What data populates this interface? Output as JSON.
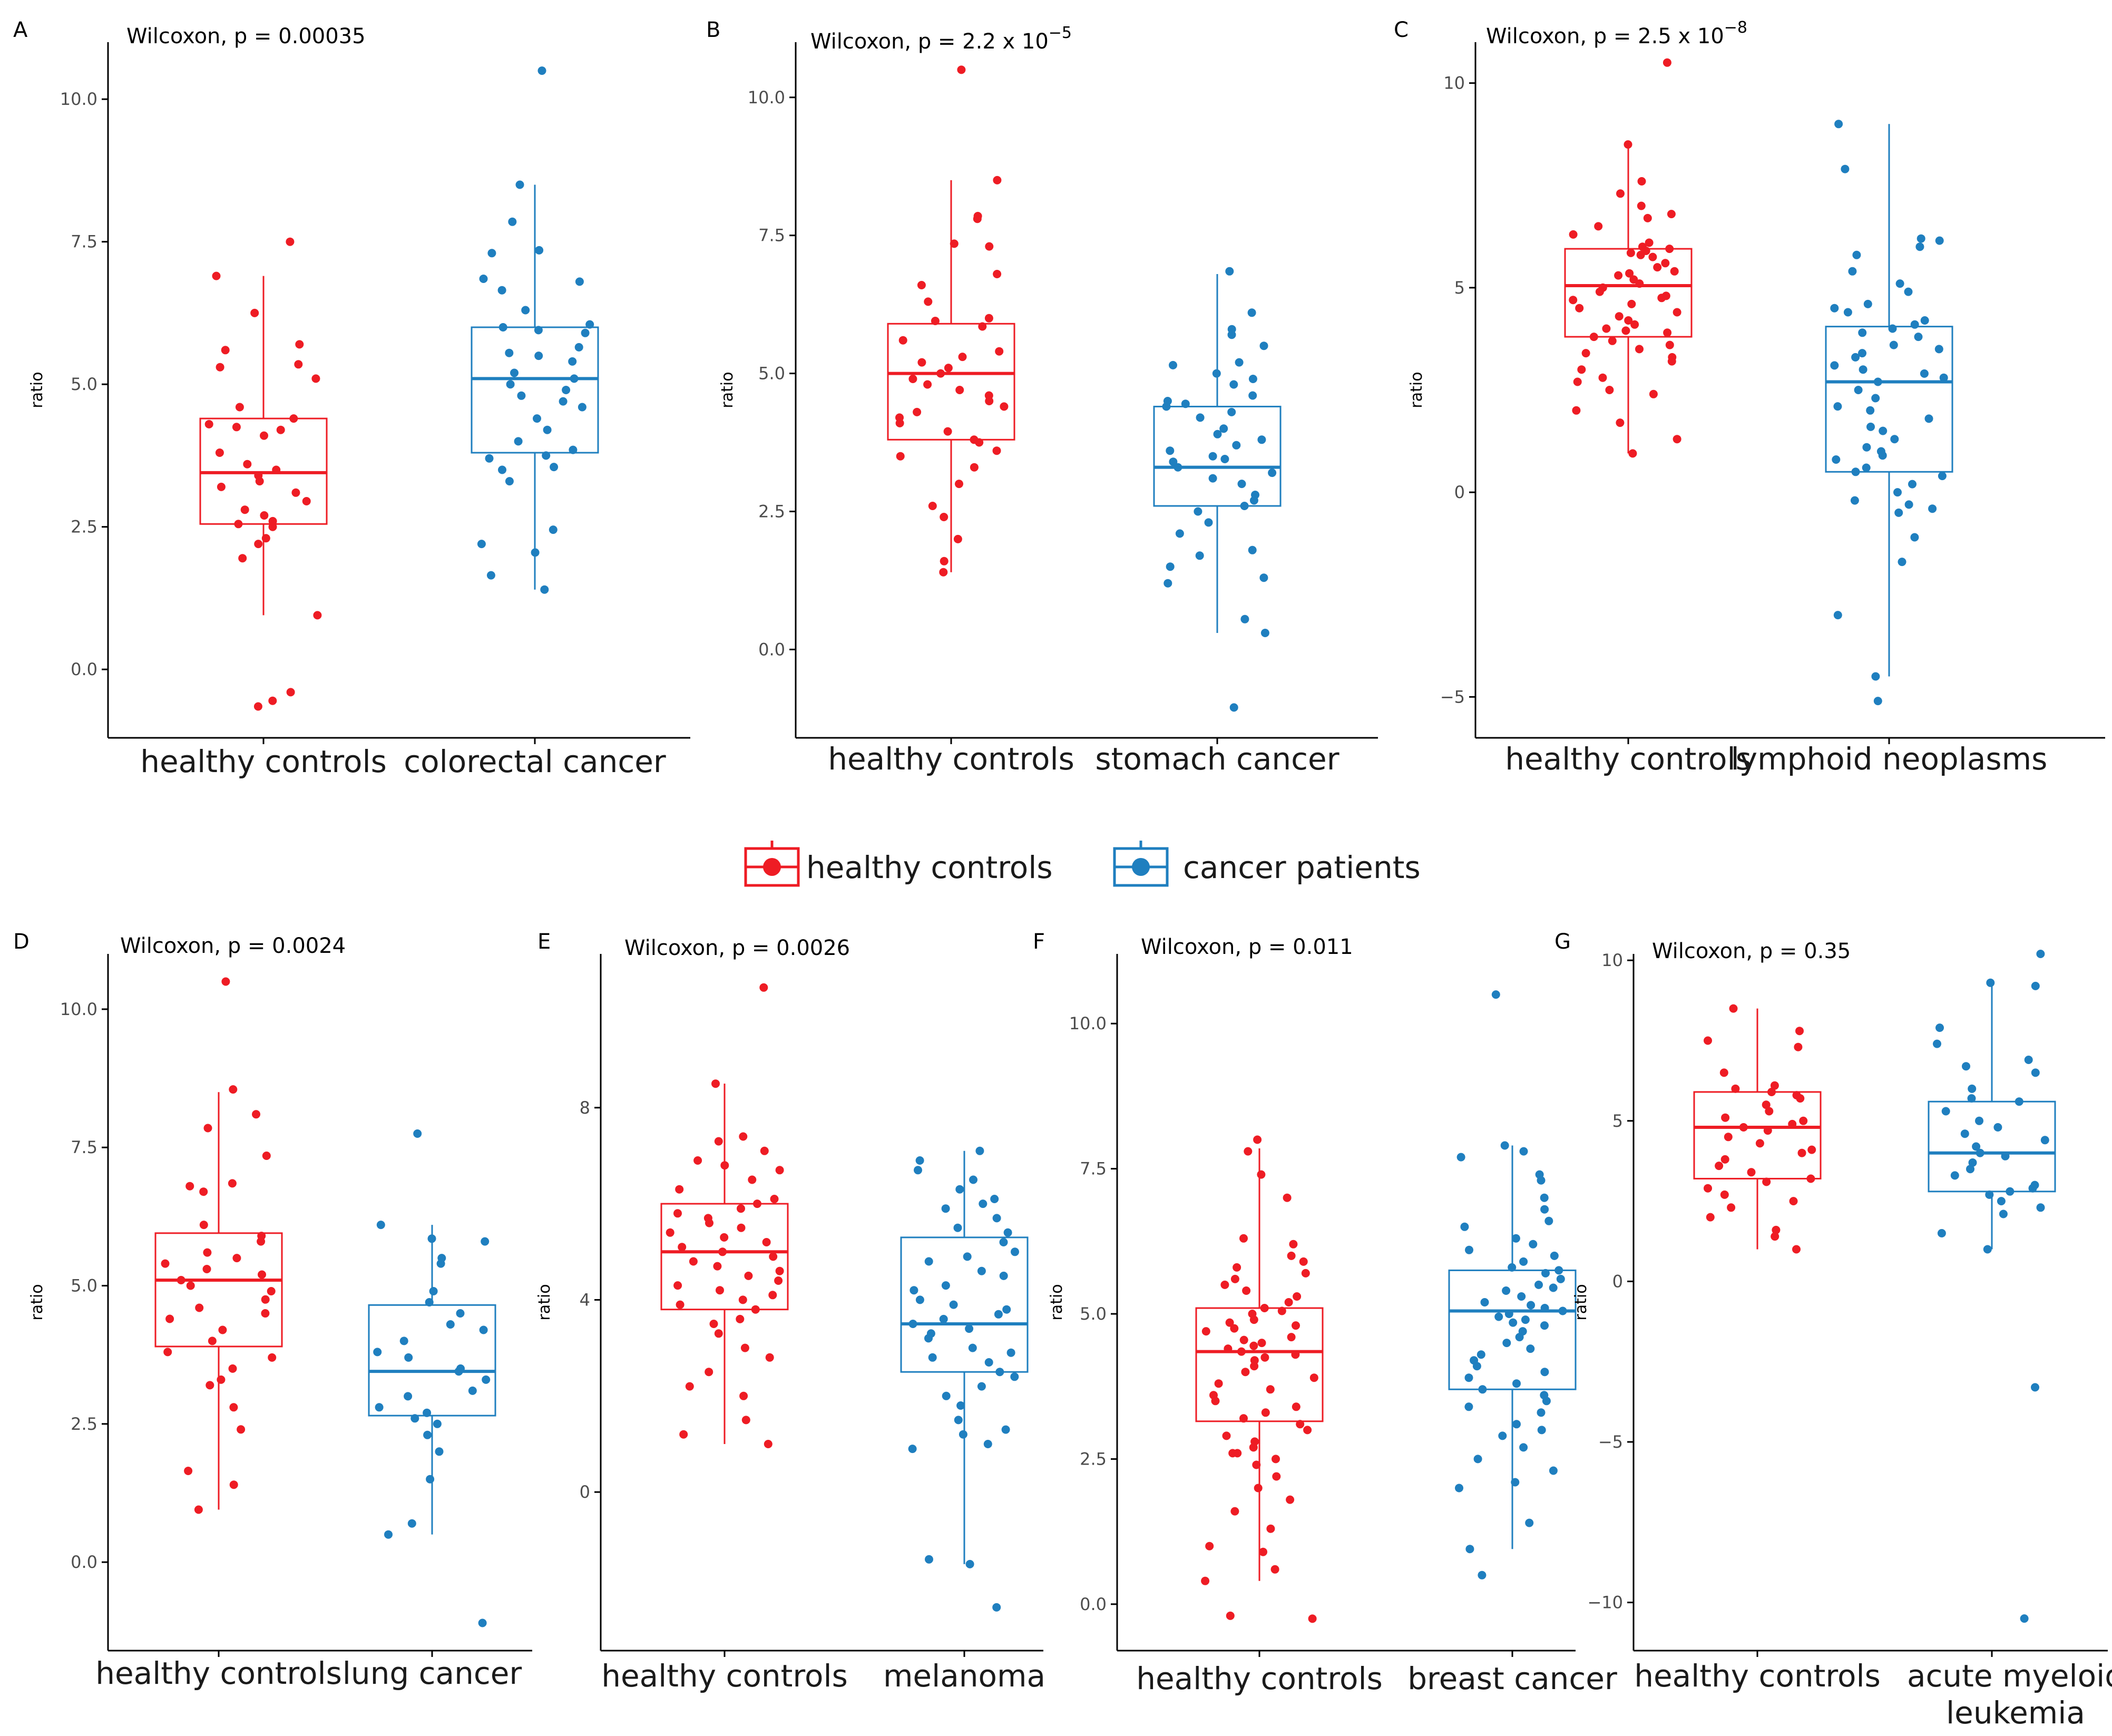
{
  "colors": {
    "healthy": "#ee1c24",
    "cancer": "#1f7fbf"
  },
  "legend": {
    "items": [
      {
        "label": "healthy controls",
        "color": "#ee1c24"
      },
      {
        "label": "cancer patients",
        "color": "#1f7fbf"
      }
    ]
  },
  "chart_data": [
    {
      "panel": "A",
      "type": "box",
      "title_prefix": "Wilcoxon, p = ",
      "p_value": "0.00035",
      "ylabel": "ratio",
      "ylim": [
        -1.2,
        11.0
      ],
      "yticks": [
        0.0,
        2.5,
        5.0,
        7.5,
        10.0
      ],
      "ytick_labels": [
        "0.0",
        "2.5",
        "5.0",
        "7.5",
        "10.0"
      ],
      "categories": [
        "healthy controls",
        "colorectal cancer"
      ],
      "boxes": [
        {
          "q1": 2.55,
          "median": 3.45,
          "q3": 4.4,
          "whisker_low": 0.95,
          "whisker_high": 6.9,
          "points": [
            7.5,
            6.9,
            6.25,
            5.7,
            5.6,
            5.35,
            5.3,
            5.1,
            4.6,
            4.4,
            4.3,
            4.25,
            4.2,
            4.1,
            3.8,
            3.6,
            3.5,
            3.4,
            3.3,
            3.2,
            3.1,
            2.95,
            2.8,
            2.7,
            2.6,
            2.55,
            2.5,
            2.3,
            2.2,
            1.95,
            0.95,
            -0.4,
            -0.55,
            -0.65
          ]
        },
        {
          "q1": 3.8,
          "median": 5.1,
          "q3": 6.0,
          "whisker_low": 1.4,
          "whisker_high": 8.5,
          "points": [
            10.5,
            8.5,
            7.85,
            7.35,
            7.3,
            6.85,
            6.8,
            6.65,
            6.3,
            6.05,
            6.0,
            5.95,
            5.9,
            5.65,
            5.55,
            5.5,
            5.4,
            5.2,
            5.1,
            5.0,
            4.9,
            4.8,
            4.7,
            4.6,
            4.4,
            4.2,
            4.0,
            3.85,
            3.75,
            3.7,
            3.55,
            3.5,
            3.3,
            2.45,
            2.2,
            2.05,
            1.65,
            1.4
          ]
        }
      ]
    },
    {
      "panel": "B",
      "type": "box",
      "title_prefix": "Wilcoxon, p = ",
      "p_value": "2.2 x 10",
      "p_exp": "−5",
      "ylabel": "ratio",
      "ylim": [
        -1.6,
        11.0
      ],
      "yticks": [
        0.0,
        2.5,
        5.0,
        7.5,
        10.0
      ],
      "ytick_labels": [
        "0.0",
        "2.5",
        "5.0",
        "7.5",
        "10.0"
      ],
      "categories": [
        "healthy controls",
        "stomach cancer"
      ],
      "boxes": [
        {
          "q1": 3.8,
          "median": 5.0,
          "q3": 5.9,
          "whisker_low": 1.4,
          "whisker_high": 8.5,
          "points": [
            10.5,
            8.5,
            7.85,
            7.8,
            7.35,
            7.3,
            6.8,
            6.6,
            6.3,
            6.0,
            5.95,
            5.85,
            5.6,
            5.4,
            5.3,
            5.2,
            5.1,
            5.0,
            4.9,
            4.8,
            4.7,
            4.6,
            4.5,
            4.4,
            4.3,
            4.2,
            4.1,
            3.95,
            3.8,
            3.75,
            3.6,
            3.5,
            3.3,
            3.0,
            2.6,
            2.4,
            2.0,
            1.6,
            1.4
          ]
        },
        {
          "q1": 2.6,
          "median": 3.3,
          "q3": 4.4,
          "whisker_low": 0.3,
          "whisker_high": 6.8,
          "points": [
            6.85,
            6.1,
            5.8,
            5.7,
            5.5,
            5.2,
            5.15,
            5.0,
            4.9,
            4.8,
            4.6,
            4.5,
            4.45,
            4.4,
            4.3,
            4.2,
            4.0,
            3.9,
            3.8,
            3.7,
            3.6,
            3.5,
            3.45,
            3.4,
            3.3,
            3.2,
            3.1,
            3.0,
            2.8,
            2.7,
            2.6,
            2.5,
            2.3,
            2.1,
            1.8,
            1.7,
            1.5,
            1.3,
            1.2,
            0.55,
            0.3,
            -1.05
          ]
        }
      ]
    },
    {
      "panel": "C",
      "type": "box",
      "title_prefix": "Wilcoxon, p = ",
      "p_value": "2.5 x 10",
      "p_exp": "−8",
      "ylabel": "ratio",
      "ylim": [
        -6.0,
        11.0
      ],
      "yticks": [
        -5,
        0,
        5,
        10
      ],
      "ytick_labels": [
        "−5",
        "0",
        "5",
        "10"
      ],
      "categories": [
        "healthy controls",
        "lymphoid neoplasms"
      ],
      "boxes": [
        {
          "q1": 3.8,
          "median": 5.05,
          "q3": 5.95,
          "whisker_low": 0.95,
          "whisker_high": 8.5,
          "points": [
            10.5,
            8.5,
            7.6,
            7.3,
            7.0,
            6.8,
            6.7,
            6.5,
            6.3,
            6.1,
            6.0,
            5.95,
            5.9,
            5.85,
            5.8,
            5.75,
            5.6,
            5.5,
            5.4,
            5.35,
            5.3,
            5.2,
            5.1,
            5.0,
            4.9,
            4.8,
            4.75,
            4.7,
            4.6,
            4.5,
            4.4,
            4.3,
            4.2,
            4.1,
            4.0,
            3.95,
            3.9,
            3.8,
            3.7,
            3.6,
            3.5,
            3.4,
            3.3,
            3.2,
            3.0,
            2.8,
            2.7,
            2.5,
            2.4,
            2.0,
            1.7,
            1.3,
            0.95
          ]
        },
        {
          "q1": 0.5,
          "median": 2.7,
          "q3": 4.05,
          "whisker_low": -4.5,
          "whisker_high": 9.0,
          "points": [
            9.0,
            7.9,
            6.2,
            6.15,
            6.0,
            5.8,
            5.4,
            5.1,
            4.9,
            4.6,
            4.5,
            4.4,
            4.2,
            4.1,
            4.0,
            3.9,
            3.8,
            3.6,
            3.5,
            3.4,
            3.3,
            3.1,
            3.0,
            2.9,
            2.8,
            2.7,
            2.5,
            2.3,
            2.1,
            2.0,
            1.8,
            1.6,
            1.5,
            1.3,
            1.1,
            1.0,
            0.9,
            0.8,
            0.6,
            0.5,
            0.4,
            0.2,
            0.0,
            -0.2,
            -0.3,
            -0.4,
            -0.5,
            -1.1,
            -1.7,
            -3.0,
            -4.5,
            -5.1
          ]
        }
      ]
    },
    {
      "panel": "D",
      "type": "box",
      "title_prefix": "Wilcoxon, p = ",
      "p_value": "0.0024",
      "ylabel": "ratio",
      "ylim": [
        -1.6,
        11.0
      ],
      "yticks": [
        0.0,
        2.5,
        5.0,
        7.5,
        10.0
      ],
      "ytick_labels": [
        "0.0",
        "2.5",
        "5.0",
        "7.5",
        "10.0"
      ],
      "categories": [
        "healthy controls",
        "lung cancer"
      ],
      "boxes": [
        {
          "q1": 3.9,
          "median": 5.1,
          "q3": 5.95,
          "whisker_low": 0.95,
          "whisker_high": 8.5,
          "points": [
            10.5,
            8.55,
            8.1,
            7.85,
            7.35,
            6.85,
            6.8,
            6.7,
            6.1,
            5.9,
            5.8,
            5.6,
            5.5,
            5.4,
            5.3,
            5.2,
            5.1,
            5.0,
            4.9,
            4.75,
            4.6,
            4.5,
            4.4,
            4.2,
            4.0,
            3.8,
            3.7,
            3.5,
            3.3,
            3.2,
            2.8,
            2.4,
            1.65,
            1.4,
            0.95
          ]
        },
        {
          "q1": 2.65,
          "median": 3.45,
          "q3": 4.65,
          "whisker_low": 0.5,
          "whisker_high": 6.1,
          "points": [
            7.75,
            6.1,
            5.85,
            5.8,
            5.5,
            5.4,
            4.9,
            4.7,
            4.5,
            4.3,
            4.2,
            4.0,
            3.8,
            3.7,
            3.5,
            3.45,
            3.3,
            3.1,
            3.0,
            2.8,
            2.7,
            2.6,
            2.5,
            2.3,
            2.0,
            1.5,
            0.7,
            0.5,
            -1.1
          ]
        }
      ]
    },
    {
      "panel": "E",
      "type": "box",
      "title_prefix": "Wilcoxon, p = ",
      "p_value": "0.0026",
      "ylabel": "ratio",
      "ylim": [
        -3.3,
        11.2
      ],
      "yticks": [
        0,
        4,
        8
      ],
      "ytick_labels": [
        "0",
        "4",
        "8"
      ],
      "categories": [
        "healthy controls",
        "melanoma"
      ],
      "boxes": [
        {
          "q1": 3.8,
          "median": 5.0,
          "q3": 6.0,
          "whisker_low": 1.0,
          "whisker_high": 8.5,
          "points": [
            10.5,
            8.5,
            7.4,
            7.3,
            7.1,
            6.9,
            6.8,
            6.7,
            6.5,
            6.3,
            6.1,
            6.0,
            5.9,
            5.8,
            5.7,
            5.6,
            5.5,
            5.4,
            5.3,
            5.2,
            5.1,
            5.0,
            4.9,
            4.8,
            4.7,
            4.6,
            4.5,
            4.4,
            4.3,
            4.2,
            4.1,
            4.0,
            3.9,
            3.8,
            3.6,
            3.5,
            3.3,
            3.0,
            2.8,
            2.5,
            2.2,
            2.0,
            1.5,
            1.2,
            1.0
          ]
        },
        {
          "q1": 2.5,
          "median": 3.5,
          "q3": 5.3,
          "whisker_low": -1.5,
          "whisker_high": 7.1,
          "points": [
            7.1,
            6.9,
            6.7,
            6.5,
            6.3,
            6.1,
            6.0,
            5.9,
            5.7,
            5.5,
            5.4,
            5.2,
            5.0,
            4.9,
            4.8,
            4.6,
            4.5,
            4.3,
            4.2,
            4.0,
            3.9,
            3.8,
            3.7,
            3.6,
            3.5,
            3.4,
            3.3,
            3.2,
            3.0,
            2.9,
            2.8,
            2.7,
            2.5,
            2.4,
            2.2,
            2.0,
            1.8,
            1.5,
            1.3,
            1.2,
            1.0,
            0.9,
            -1.4,
            -1.5,
            -2.4
          ]
        }
      ]
    },
    {
      "panel": "F",
      "type": "box",
      "title_prefix": "Wilcoxon, p = ",
      "p_value": "0.011",
      "ylabel": "ratio",
      "ylim": [
        -0.8,
        11.2
      ],
      "yticks": [
        0.0,
        2.5,
        5.0,
        7.5,
        10.0
      ],
      "ytick_labels": [
        "0.0",
        "2.5",
        "5.0",
        "7.5",
        "10.0"
      ],
      "categories": [
        "healthy controls",
        "breast cancer"
      ],
      "boxes": [
        {
          "q1": 3.15,
          "median": 4.35,
          "q3": 5.1,
          "whisker_low": 0.4,
          "whisker_high": 7.85,
          "points": [
            8.0,
            7.8,
            7.4,
            7.0,
            6.3,
            6.2,
            6.0,
            5.9,
            5.8,
            5.7,
            5.6,
            5.5,
            5.4,
            5.3,
            5.2,
            5.1,
            5.05,
            5.0,
            4.9,
            4.85,
            4.8,
            4.75,
            4.7,
            4.6,
            4.55,
            4.5,
            4.45,
            4.4,
            4.35,
            4.3,
            4.25,
            4.2,
            4.1,
            4.0,
            3.9,
            3.8,
            3.7,
            3.6,
            3.5,
            3.4,
            3.3,
            3.2,
            3.1,
            3.0,
            2.9,
            2.8,
            2.7,
            2.6,
            2.6,
            2.5,
            2.4,
            2.2,
            2.0,
            1.8,
            1.6,
            1.3,
            1.0,
            0.9,
            0.6,
            0.4,
            -0.2,
            -0.25
          ]
        },
        {
          "q1": 3.7,
          "median": 5.05,
          "q3": 5.75,
          "whisker_low": 0.95,
          "whisker_high": 7.9,
          "points": [
            10.5,
            7.9,
            7.8,
            7.7,
            7.4,
            7.3,
            7.0,
            6.8,
            6.6,
            6.5,
            6.3,
            6.2,
            6.1,
            6.0,
            5.9,
            5.8,
            5.75,
            5.7,
            5.6,
            5.5,
            5.45,
            5.4,
            5.3,
            5.2,
            5.15,
            5.1,
            5.05,
            5.0,
            4.95,
            4.9,
            4.85,
            4.8,
            4.7,
            4.6,
            4.5,
            4.4,
            4.3,
            4.2,
            4.1,
            4.0,
            3.9,
            3.8,
            3.7,
            3.6,
            3.5,
            3.4,
            3.3,
            3.1,
            3.0,
            2.9,
            2.7,
            2.5,
            2.3,
            2.1,
            2.0,
            1.4,
            0.95,
            0.5
          ]
        }
      ]
    },
    {
      "panel": "G",
      "type": "box",
      "title_prefix": "Wilcoxon, p = ",
      "p_value": "0.35",
      "ylabel": "ratio",
      "ylim": [
        -11.5,
        10.2
      ],
      "yticks": [
        -10,
        -5,
        0,
        5,
        10
      ],
      "ytick_labels": [
        "−10",
        "−5",
        "0",
        "5",
        "10"
      ],
      "categories": [
        "healthy controls",
        "acute myeloid leukemia"
      ],
      "boxes": [
        {
          "q1": 3.2,
          "median": 4.8,
          "q3": 5.9,
          "whisker_low": 1.0,
          "whisker_high": 8.5,
          "points": [
            8.5,
            7.8,
            7.5,
            7.3,
            6.5,
            6.1,
            6.0,
            5.9,
            5.8,
            5.7,
            5.5,
            5.3,
            5.1,
            5.0,
            4.9,
            4.8,
            4.7,
            4.5,
            4.3,
            4.1,
            4.0,
            3.8,
            3.6,
            3.4,
            3.2,
            3.1,
            2.9,
            2.7,
            2.5,
            2.3,
            2.0,
            1.6,
            1.4,
            1.0
          ]
        },
        {
          "q1": 2.8,
          "median": 4.0,
          "q3": 5.6,
          "whisker_low": 1.0,
          "whisker_high": 9.3,
          "points": [
            10.2,
            9.3,
            9.2,
            7.9,
            7.4,
            6.9,
            6.7,
            6.5,
            6.0,
            5.7,
            5.6,
            5.3,
            5.0,
            4.8,
            4.6,
            4.4,
            4.2,
            4.0,
            3.9,
            3.7,
            3.5,
            3.3,
            3.0,
            2.9,
            2.8,
            2.7,
            2.5,
            2.3,
            2.1,
            1.5,
            1.0,
            -3.3,
            -10.5
          ]
        }
      ]
    }
  ]
}
